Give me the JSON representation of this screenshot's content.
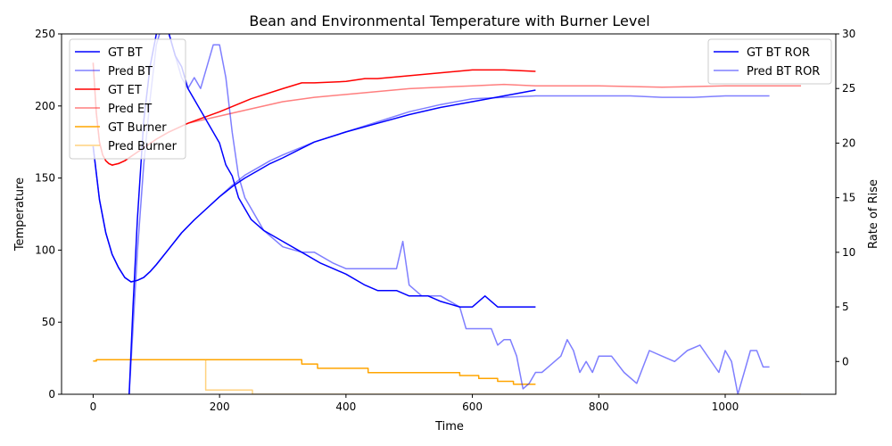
{
  "chart_data": {
    "type": "line",
    "title": "Bean and Environmental Temperature with Burner Level",
    "xlabel": "Time",
    "ylabel": "Temperature",
    "y2label": "Rate of Rise",
    "xlim": [
      -50,
      1175
    ],
    "ylim": [
      0,
      250
    ],
    "y2lim": [
      -3,
      30
    ],
    "xticks": [
      0,
      200,
      400,
      600,
      800,
      1000
    ],
    "yticks": [
      0,
      50,
      100,
      150,
      200,
      250
    ],
    "y2ticks": [
      0,
      5,
      10,
      15,
      20,
      25,
      30
    ],
    "grid": false,
    "legend_left": "top-left",
    "legend_right": "top-right",
    "series": [
      {
        "name": "GT BT",
        "axis": "left",
        "color": "#0000ff",
        "opacity": 1,
        "x": [
          0,
          10,
          20,
          30,
          40,
          50,
          60,
          70,
          80,
          90,
          100,
          120,
          140,
          160,
          180,
          200,
          220,
          240,
          260,
          280,
          300,
          350,
          400,
          450,
          500,
          550,
          600,
          650,
          700
        ],
        "y": [
          172,
          135,
          112,
          97,
          88,
          81,
          78,
          79,
          81,
          85,
          90,
          101,
          112,
          121,
          129,
          137,
          144,
          150,
          155,
          160,
          164,
          175,
          182,
          188,
          194,
          199,
          203,
          207,
          211
        ]
      },
      {
        "name": "Pred BT",
        "axis": "left",
        "color": "#0000ff",
        "opacity": 0.5,
        "x": [
          0,
          10,
          20,
          30,
          40,
          50,
          60,
          70,
          80,
          90,
          100,
          120,
          140,
          160,
          180,
          200,
          220,
          240,
          260,
          280,
          300,
          350,
          400,
          450,
          500,
          550,
          600,
          650,
          700,
          750,
          800,
          850,
          900,
          950,
          1000,
          1050,
          1070
        ],
        "y": [
          172,
          135,
          112,
          97,
          88,
          81,
          78,
          79,
          81,
          85,
          90,
          101,
          112,
          121,
          129,
          137,
          145,
          152,
          157,
          162,
          166,
          175,
          182,
          189,
          196,
          201,
          205,
          206,
          207,
          207,
          207,
          207,
          206,
          206,
          207,
          207,
          207
        ]
      },
      {
        "name": "GT ET",
        "axis": "left",
        "color": "#ff0000",
        "opacity": 1,
        "x": [
          0,
          5,
          10,
          15,
          20,
          25,
          30,
          40,
          50,
          60,
          80,
          100,
          120,
          150,
          200,
          250,
          300,
          330,
          350,
          400,
          430,
          450,
          500,
          550,
          600,
          620,
          650,
          700
        ],
        "y": [
          230,
          195,
          175,
          166,
          162,
          160,
          159,
          160,
          162,
          165,
          171,
          177,
          182,
          188,
          196,
          205,
          212,
          216,
          216,
          217,
          219,
          219,
          221,
          223,
          225,
          225,
          225,
          224
        ]
      },
      {
        "name": "Pred ET",
        "axis": "left",
        "color": "#ff0000",
        "opacity": 0.5,
        "x": [
          0,
          5,
          10,
          15,
          20,
          25,
          30,
          40,
          50,
          60,
          80,
          100,
          120,
          150,
          200,
          250,
          300,
          350,
          400,
          450,
          500,
          550,
          600,
          650,
          700,
          800,
          900,
          1000,
          1100,
          1120
        ],
        "y": [
          230,
          195,
          175,
          166,
          162,
          160,
          159,
          160,
          162,
          165,
          171,
          177,
          182,
          188,
          193,
          198,
          203,
          206,
          208,
          210,
          212,
          213,
          214,
          215,
          214,
          214,
          213,
          214,
          214,
          214
        ]
      },
      {
        "name": "GT Burner",
        "axis": "left",
        "color": "#ffa500",
        "opacity": 1,
        "x": [
          0,
          5,
          5,
          330,
          330,
          355,
          355,
          435,
          435,
          580,
          580,
          610,
          610,
          640,
          640,
          665,
          665,
          700
        ],
        "y": [
          23,
          23,
          24,
          24,
          21,
          21,
          18,
          18,
          15,
          15,
          13,
          13,
          11,
          11,
          9,
          9,
          7,
          7
        ]
      },
      {
        "name": "Pred Burner",
        "axis": "left",
        "color": "#ffa500",
        "opacity": 0.5,
        "x": [
          0,
          5,
          5,
          178,
          178,
          252,
          252,
          1120
        ],
        "y": [
          23,
          23,
          24,
          24,
          3,
          3,
          0,
          0
        ]
      },
      {
        "name": "GT BT ROR",
        "axis": "right",
        "color": "#0000ff",
        "opacity": 1,
        "x": [
          57,
          63,
          70,
          80,
          90,
          100,
          110,
          120,
          130,
          140,
          150,
          170,
          190,
          200,
          210,
          220,
          230,
          240,
          250,
          270,
          300,
          330,
          360,
          380,
          400,
          430,
          450,
          480,
          500,
          530,
          550,
          580,
          600,
          620,
          640,
          660,
          680,
          700
        ],
        "y": [
          -3,
          5,
          13,
          22,
          27,
          30,
          31,
          30,
          28,
          27,
          25,
          23,
          21,
          20,
          18,
          17,
          15,
          14,
          13,
          12,
          11,
          10,
          9,
          8.5,
          8,
          7,
          6.5,
          6.5,
          6,
          6,
          5.5,
          5,
          5,
          6,
          5,
          5,
          5,
          5
        ]
      },
      {
        "name": "Pred BT ROR",
        "axis": "right",
        "color": "#0000ff",
        "opacity": 0.5,
        "x": [
          57,
          63,
          70,
          80,
          90,
          100,
          110,
          120,
          130,
          140,
          150,
          160,
          170,
          180,
          190,
          200,
          210,
          220,
          230,
          240,
          250,
          270,
          290,
          300,
          330,
          350,
          380,
          400,
          420,
          440,
          460,
          480,
          490,
          500,
          520,
          550,
          580,
          590,
          600,
          630,
          640,
          650,
          660,
          670,
          680,
          690,
          700,
          710,
          720,
          730,
          740,
          750,
          760,
          770,
          780,
          790,
          800,
          820,
          840,
          860,
          880,
          900,
          920,
          940,
          960,
          990,
          1000,
          1010,
          1020,
          1030,
          1040,
          1050,
          1060,
          1070
        ],
        "y": [
          -3,
          3,
          10,
          18,
          24,
          29,
          31,
          30,
          28,
          26,
          25,
          26,
          25,
          27,
          29,
          29,
          26,
          21,
          17,
          15,
          14,
          12,
          11,
          10.5,
          10,
          10,
          9,
          8.5,
          8.5,
          8.5,
          8.5,
          8.5,
          11,
          7,
          6,
          6,
          5,
          3,
          3,
          3,
          1.5,
          2,
          2,
          0.5,
          -2.5,
          -2,
          -1,
          -1,
          -0.5,
          0,
          0.5,
          2,
          1,
          -1,
          0,
          -1,
          0.5,
          0.5,
          -1,
          -2,
          1,
          0.5,
          0,
          1,
          1.5,
          -1,
          1,
          0,
          -3,
          -1,
          1,
          1,
          -0.5,
          -0.5
        ]
      }
    ]
  }
}
